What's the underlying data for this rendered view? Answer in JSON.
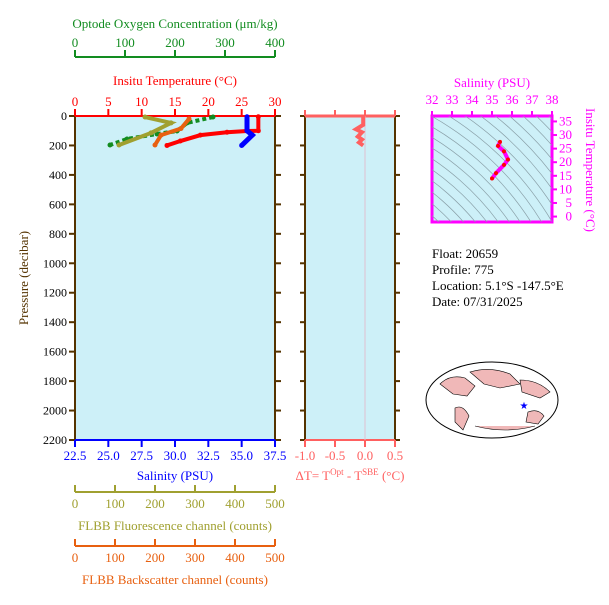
{
  "info": {
    "float": "Float:  20659",
    "profile": "Profile:  775",
    "location": "Location:  5.1°S  -147.5°E",
    "date": "Date:  07/31/2025"
  },
  "colors": {
    "temperature": "#ff0000",
    "salinity": "#0000ff",
    "oxygen": "#128c20",
    "fluorescence": "#a0a030",
    "backscatter": "#e86010",
    "delta": "#ff6060",
    "ts": "#ff00ff",
    "axis": "#553300",
    "panel_bg": "#cdf0f8"
  },
  "chart_data": [
    {
      "type": "line",
      "ylabel": "Pressure (decibar)",
      "ylim": [
        2200,
        0
      ],
      "yticks": [
        0,
        200,
        400,
        600,
        800,
        1000,
        1200,
        1400,
        1600,
        1800,
        2000,
        2200
      ],
      "axes": [
        {
          "key": "temperature",
          "label": "Insitu Temperature (°C)",
          "range": [
            0,
            30
          ],
          "ticks": [
            0,
            5,
            10,
            15,
            20,
            25,
            30
          ]
        },
        {
          "key": "salinity",
          "label": "Salinity (PSU)",
          "range": [
            22.5,
            37.5
          ],
          "ticks": [
            "22.5",
            "25.0",
            "27.5",
            "30.0",
            "32.5",
            "35.0",
            "37.5"
          ]
        },
        {
          "key": "oxygen",
          "label": "Optode Oxygen Concentration (μm/kg)",
          "range": [
            0,
            400
          ],
          "ticks": [
            0,
            100,
            200,
            300,
            400
          ]
        },
        {
          "key": "fluorescence",
          "label": "FLBB Fluorescence channel (counts)",
          "range": [
            0,
            500
          ],
          "ticks": [
            0,
            100,
            200,
            300,
            400,
            500
          ]
        },
        {
          "key": "backscatter",
          "label": "FLBB Backscatter channel (counts)",
          "range": [
            0,
            500
          ],
          "ticks": [
            0,
            100,
            200,
            300,
            400,
            500
          ]
        }
      ],
      "series": [
        {
          "key": "temperature",
          "points": [
            [
              27.5,
              5
            ],
            [
              27.5,
              100
            ],
            [
              25.8,
              102
            ],
            [
              22.8,
              110
            ],
            [
              18.8,
              130
            ],
            [
              15.8,
              170
            ],
            [
              13.8,
              200
            ]
          ]
        },
        {
          "key": "salinity",
          "points": [
            [
              35.4,
              5
            ],
            [
              35.4,
              100
            ],
            [
              35.8,
              130
            ],
            [
              35.0,
              200
            ]
          ]
        },
        {
          "key": "oxygen",
          "points": [
            [
              276,
              7
            ],
            [
              224,
              47
            ],
            [
              204,
              102
            ],
            [
              164,
              122
            ],
            [
              104,
              156
            ],
            [
              70,
              197
            ]
          ]
        },
        {
          "key": "fluorescence",
          "points": [
            [
              175,
              7
            ],
            [
              240,
              47
            ],
            [
              190,
              115
            ],
            [
              110,
              197
            ]
          ]
        },
        {
          "key": "backscatter",
          "points": [
            [
              285,
              20
            ],
            [
              265,
              85
            ],
            [
              215,
              130
            ],
            [
              200,
              197
            ]
          ]
        }
      ]
    },
    {
      "type": "line",
      "xlabel": "ΔT= T^Opt - T^SBE (°C)",
      "xlabel_parts": [
        "ΔT= T",
        "Opt",
        " - T",
        "SBE",
        " (°C)"
      ],
      "xlim": [
        -1.0,
        0.5
      ],
      "xticks": [
        "-1.0",
        "-0.5",
        "0.0",
        "0.5"
      ],
      "ylim": [
        2200,
        0
      ],
      "points": [
        [
          -0.03,
          0
        ],
        [
          -0.03,
          60
        ],
        [
          -0.15,
          90
        ],
        [
          -0.05,
          110
        ],
        [
          -0.12,
          140
        ],
        [
          -0.05,
          160
        ],
        [
          -0.1,
          180
        ],
        [
          -0.03,
          200
        ]
      ]
    },
    {
      "type": "scatter",
      "xlabel": "Salinity (PSU)",
      "ylabel": "Insitu Temperature (°C)",
      "xlim": [
        32,
        38
      ],
      "ylim": [
        -2,
        37
      ],
      "xticks": [
        32,
        33,
        34,
        35,
        36,
        37,
        38
      ],
      "yticks": [
        0,
        5,
        10,
        15,
        20,
        25,
        30,
        35
      ],
      "points": [
        [
          35.4,
          27.5
        ],
        [
          35.3,
          26
        ],
        [
          35.6,
          24
        ],
        [
          35.8,
          21
        ],
        [
          35.6,
          19
        ],
        [
          35.2,
          16
        ],
        [
          35.0,
          14
        ]
      ]
    }
  ]
}
